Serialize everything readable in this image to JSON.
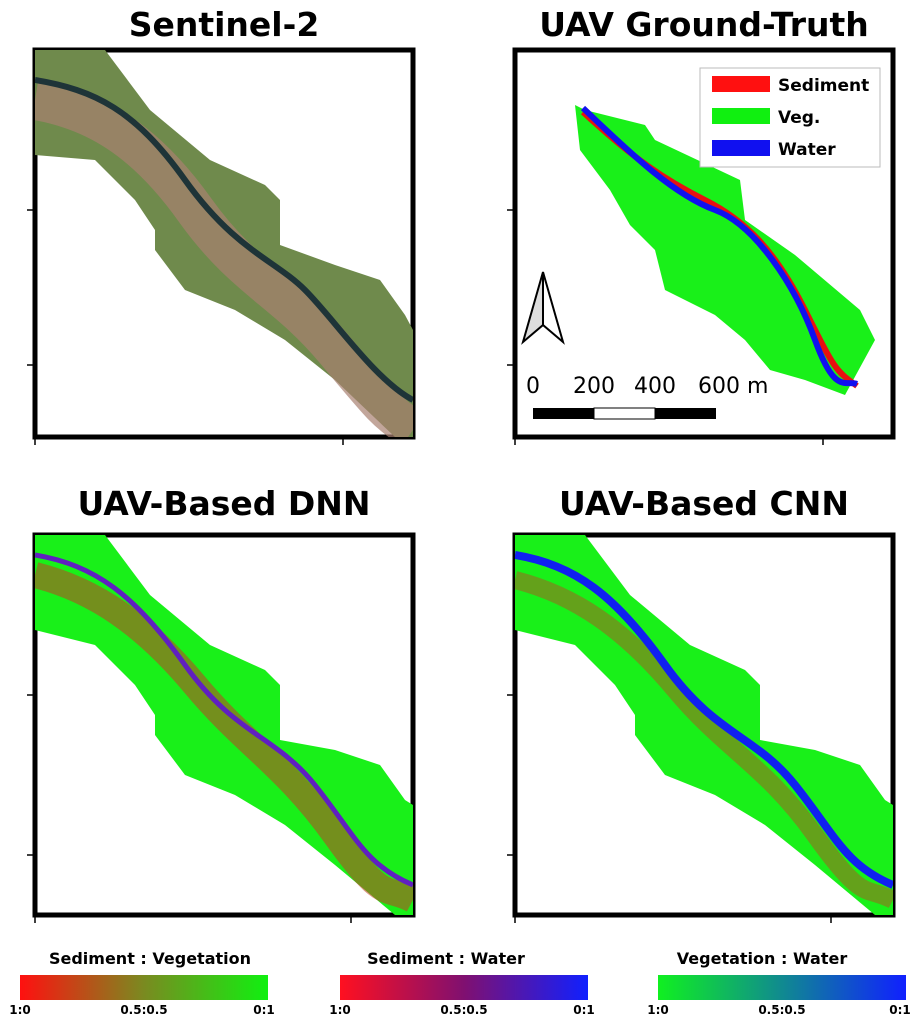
{
  "panels": [
    {
      "title": "Sentinel-2"
    },
    {
      "title": "UAV Ground-Truth"
    },
    {
      "title": "UAV-Based DNN"
    },
    {
      "title": "UAV-Based CNN"
    }
  ],
  "legend": [
    "Sediment",
    "Veg.",
    "Water"
  ],
  "scale_bar": [
    "0",
    "200",
    "400",
    "600 m"
  ],
  "colorbars": [
    {
      "title": "Sediment : Vegetation",
      "labels": [
        "1:0",
        "0.5:0.5",
        "0:1"
      ]
    },
    {
      "title": "Sediment : Water",
      "labels": [
        "1:0",
        "0.5:0.5",
        "0:1"
      ]
    },
    {
      "title": "Vegetation : Water",
      "labels": [
        "1:0",
        "0.5:0.5",
        "0:1"
      ]
    }
  ]
}
